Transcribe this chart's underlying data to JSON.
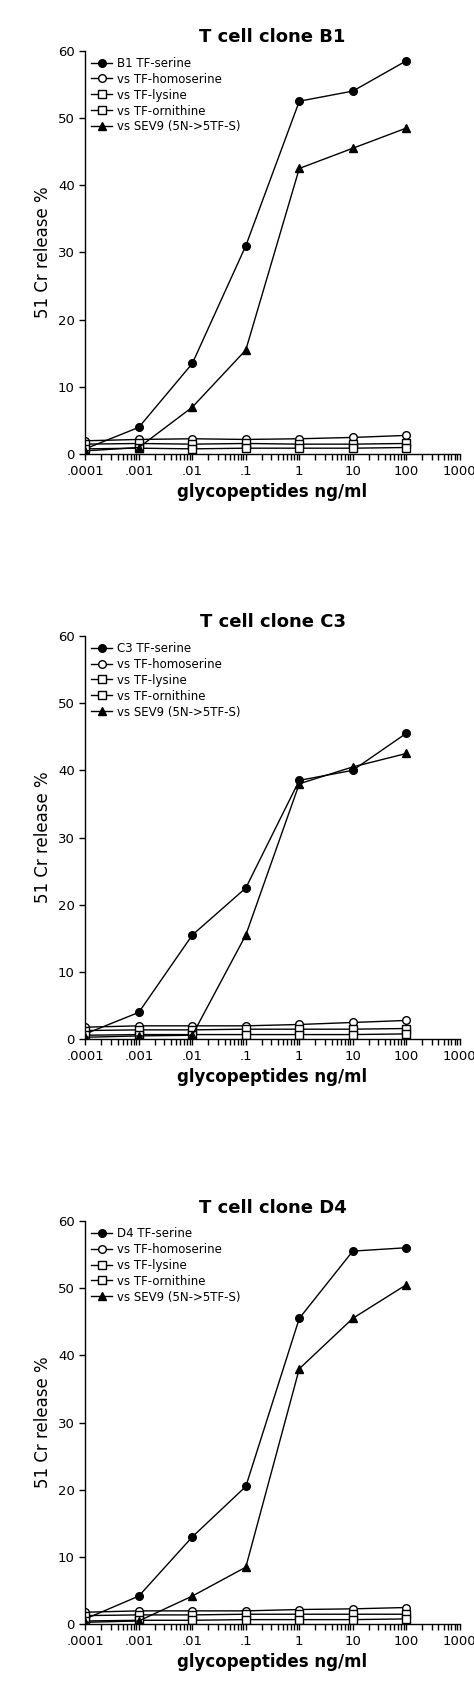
{
  "panels": [
    {
      "title": "T cell clone B1",
      "series": [
        {
          "label": "B1 TF-serine",
          "marker": "o",
          "filled": true,
          "x": [
            0.0001,
            0.001,
            0.01,
            0.1,
            1,
            10,
            100
          ],
          "y": [
            0.8,
            4.0,
            13.5,
            31.0,
            52.5,
            54.0,
            58.5
          ]
        },
        {
          "label": "vs TF-homoserine",
          "marker": "o",
          "filled": false,
          "x": [
            0.0001,
            0.001,
            0.01,
            0.1,
            1,
            10,
            100
          ],
          "y": [
            2.0,
            2.2,
            2.3,
            2.2,
            2.3,
            2.5,
            2.8
          ]
        },
        {
          "label": "vs TF-lysine",
          "marker": "s",
          "filled": false,
          "x": [
            0.0001,
            0.001,
            0.01,
            0.1,
            1,
            10,
            100
          ],
          "y": [
            1.5,
            1.6,
            1.5,
            1.6,
            1.5,
            1.5,
            1.6
          ]
        },
        {
          "label": "vs TF-ornithine",
          "marker": "s",
          "filled": false,
          "x": [
            0.0001,
            0.001,
            0.01,
            0.1,
            1,
            10,
            100
          ],
          "y": [
            0.8,
            0.9,
            0.8,
            0.9,
            0.9,
            0.9,
            1.0
          ]
        },
        {
          "label": "vs SEV9 (5N->5TF-S)",
          "marker": "^",
          "filled": true,
          "x": [
            0.0001,
            0.001,
            0.01,
            0.1,
            1,
            10,
            100
          ],
          "y": [
            0.5,
            1.0,
            7.0,
            15.5,
            42.5,
            45.5,
            48.5
          ]
        }
      ]
    },
    {
      "title": "T cell clone C3",
      "series": [
        {
          "label": "C3 TF-serine",
          "marker": "o",
          "filled": true,
          "x": [
            0.0001,
            0.001,
            0.01,
            0.1,
            1,
            10,
            100
          ],
          "y": [
            0.8,
            4.0,
            15.5,
            22.5,
            38.5,
            40.0,
            45.5
          ]
        },
        {
          "label": "vs TF-homoserine",
          "marker": "o",
          "filled": false,
          "x": [
            0.0001,
            0.001,
            0.01,
            0.1,
            1,
            10,
            100
          ],
          "y": [
            1.8,
            2.0,
            2.0,
            2.0,
            2.2,
            2.5,
            2.8
          ]
        },
        {
          "label": "vs TF-lysine",
          "marker": "s",
          "filled": false,
          "x": [
            0.0001,
            0.001,
            0.01,
            0.1,
            1,
            10,
            100
          ],
          "y": [
            1.3,
            1.4,
            1.4,
            1.5,
            1.5,
            1.5,
            1.6
          ]
        },
        {
          "label": "vs TF-ornithine",
          "marker": "s",
          "filled": false,
          "x": [
            0.0001,
            0.001,
            0.01,
            0.1,
            1,
            10,
            100
          ],
          "y": [
            0.6,
            0.7,
            0.7,
            0.7,
            0.7,
            0.7,
            0.8
          ]
        },
        {
          "label": "vs SEV9 (5N->5TF-S)",
          "marker": "^",
          "filled": true,
          "x": [
            0.0001,
            0.001,
            0.01,
            0.1,
            1,
            10,
            100
          ],
          "y": [
            0.3,
            0.5,
            0.6,
            15.5,
            38.0,
            40.5,
            42.5
          ]
        }
      ]
    },
    {
      "title": "T cell clone D4",
      "series": [
        {
          "label": "D4 TF-serine",
          "marker": "o",
          "filled": true,
          "x": [
            0.0001,
            0.001,
            0.01,
            0.1,
            1,
            10,
            100
          ],
          "y": [
            0.8,
            4.2,
            13.0,
            20.5,
            45.5,
            55.5,
            56.0
          ]
        },
        {
          "label": "vs TF-homoserine",
          "marker": "o",
          "filled": false,
          "x": [
            0.0001,
            0.001,
            0.01,
            0.1,
            1,
            10,
            100
          ],
          "y": [
            1.8,
            2.0,
            2.0,
            2.0,
            2.2,
            2.3,
            2.5
          ]
        },
        {
          "label": "vs TF-lysine",
          "marker": "s",
          "filled": false,
          "x": [
            0.0001,
            0.001,
            0.01,
            0.1,
            1,
            10,
            100
          ],
          "y": [
            1.3,
            1.4,
            1.4,
            1.5,
            1.5,
            1.5,
            1.5
          ]
        },
        {
          "label": "vs TF-ornithine",
          "marker": "s",
          "filled": false,
          "x": [
            0.0001,
            0.001,
            0.01,
            0.1,
            1,
            10,
            100
          ],
          "y": [
            0.5,
            0.6,
            0.6,
            0.7,
            0.7,
            0.7,
            0.8
          ]
        },
        {
          "label": "vs SEV9 (5N->5TF-S)",
          "marker": "^",
          "filled": true,
          "x": [
            0.0001,
            0.001,
            0.01,
            0.1,
            1,
            10,
            100
          ],
          "y": [
            0.3,
            0.5,
            4.2,
            8.5,
            38.0,
            45.5,
            50.5
          ]
        }
      ]
    }
  ],
  "ylabel": "51 Cr release %",
  "xlabel": "glycopeptides ng/ml",
  "ylim": [
    0,
    60
  ],
  "yticks": [
    0,
    10,
    20,
    30,
    40,
    50,
    60
  ],
  "xlim": [
    0.0001,
    1000
  ],
  "xtick_labels": [
    ".0001",
    ".001",
    ".01",
    ".1",
    "1",
    "10",
    "100",
    "1000"
  ],
  "xtick_values": [
    0.0001,
    0.001,
    0.01,
    0.1,
    1,
    10,
    100,
    1000
  ],
  "background_color": "#ffffff",
  "line_color": "#000000",
  "title_fontsize": 13,
  "label_fontsize": 12,
  "legend_fontsize": 8.5,
  "tick_fontsize": 9.5
}
